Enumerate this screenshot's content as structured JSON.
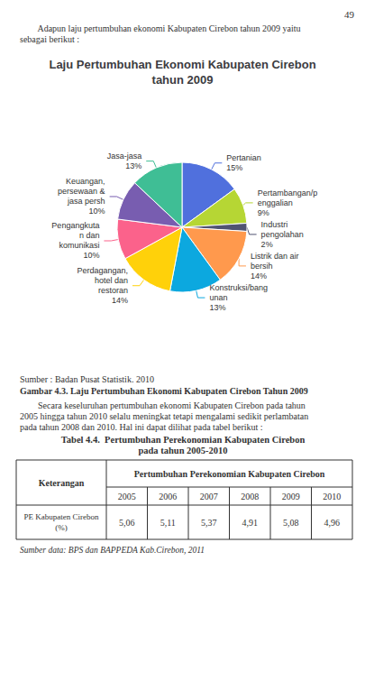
{
  "chart_data": {
    "type": "pie",
    "title": "Laju Pertumbuhan Ekonomi Kabupaten Cirebon\ntahun 2009",
    "categories": [
      "Pertanian",
      "Pertambangan/p\nenggalian",
      "Industri\npengolahan",
      "Listrik dan air\nbersih",
      "Konstruksi/bang\nunan",
      "Perdagangan,\nhotel dan\nrestoran",
      "Pengangkuta\nn dan\nkomunikasi",
      "Keuangan,\npersewaan &\njasa persh",
      "Jasa-jasa"
    ],
    "values": [
      15,
      9,
      2,
      14,
      13,
      14,
      10,
      10,
      13
    ],
    "value_labels": [
      "15%",
      "9%",
      "2%",
      "14%",
      "13%",
      "14%",
      "10%",
      "10%",
      "13%"
    ],
    "data_labels": true,
    "page_number": "49",
    "paragraphs": [
      [
        "        Adapun laju pertumbuhan ekonomi Kabupaten Cirebon tahun 2009 yaitu",
        "sebagai berikut :"
      ],
      [
        "        Secara keseluruhan pertumbuhan ekonomi Kabupaten Cirebon pada tahun",
        "2005 hingga tahun 2010 selalu meningkat tetapi mengalami sedikit perlambatan",
        "pada tahun 2008 dan 2010. Hal ini dapat dilihat pada tabel berikut :"
      ]
    ],
    "source": "Sumber : Badan Pusat Statistik. 2010",
    "caption": "Gambar 4.3. Laju Pertumbuhan Ekonomi Kabupaten Cirebon Tahun 2009",
    "table": {
      "title": [
        "Tabel 4.4.  Pertumbuhan Perekonomian Kabupaten Cirebon",
        "pada tahun 2005-2010"
      ],
      "col_header1": "Keterangan",
      "col_header2": "Pertumbuhan Perekonomian Kabupaten Cirebon",
      "years": [
        "2005",
        "2006",
        "2007",
        "2008",
        "2009",
        "2010"
      ],
      "row_label": [
        "PE Kabupaten Cirebon",
        "(%)"
      ],
      "values": [
        "5,06",
        "5,11",
        "5,37",
        "4,91",
        "5,08",
        "4,96"
      ],
      "source": "Sumber data: BPS dan BAPPEDA Kab.Cirebon, 2011"
    }
  }
}
